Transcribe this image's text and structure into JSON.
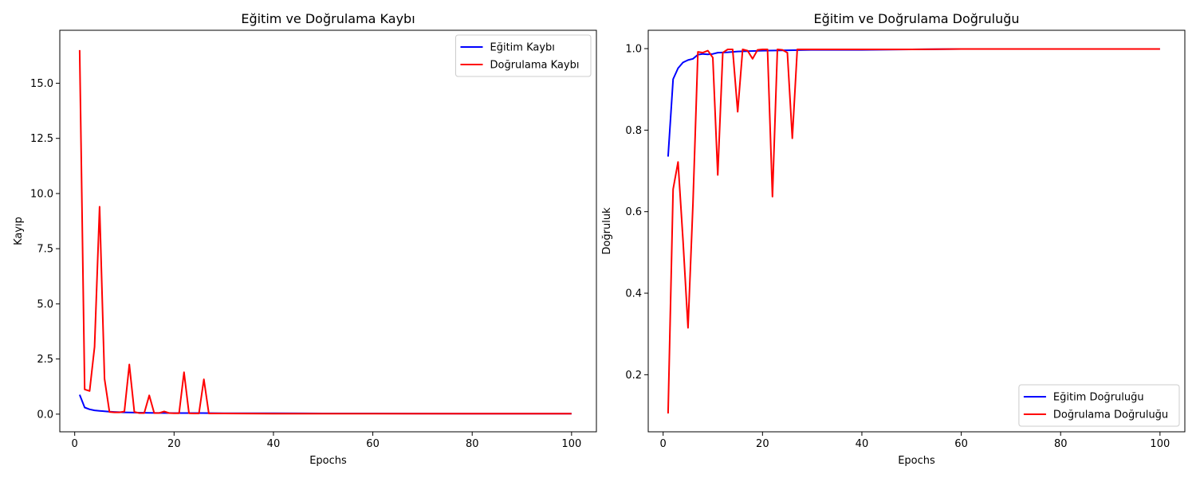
{
  "chart_data": [
    {
      "type": "line",
      "title": "Eğitim ve Doğrulama Kaybı",
      "xlabel": "Epochs",
      "ylabel": "Kayıp",
      "xlim": [
        -3,
        105
      ],
      "ylim": [
        -0.8,
        17.4
      ],
      "xticks": [
        0,
        20,
        40,
        60,
        80,
        100
      ],
      "yticks": [
        0.0,
        2.5,
        5.0,
        7.5,
        10.0,
        12.5,
        15.0
      ],
      "ytick_labels": [
        "0.0",
        "2.5",
        "5.0",
        "7.5",
        "10.0",
        "12.5",
        "15.0"
      ],
      "legend_position": "top-right",
      "grid": false,
      "series": [
        {
          "name": "Eğitim Kaybı",
          "color": "#0000ff",
          "x": [
            1,
            2,
            3,
            4,
            5,
            6,
            7,
            8,
            9,
            10,
            12,
            15,
            20,
            25,
            30,
            40,
            50,
            60,
            80,
            100
          ],
          "y": [
            0.88,
            0.3,
            0.22,
            0.17,
            0.15,
            0.13,
            0.11,
            0.1,
            0.09,
            0.08,
            0.07,
            0.06,
            0.05,
            0.05,
            0.04,
            0.04,
            0.03,
            0.03,
            0.02,
            0.02
          ]
        },
        {
          "name": "Doğrulama Kaybı",
          "color": "#ff0000",
          "x": [
            1,
            2,
            3,
            4,
            5,
            6,
            7,
            8,
            9,
            10,
            11,
            12,
            13,
            14,
            15,
            16,
            17,
            18,
            19,
            20,
            21,
            22,
            23,
            24,
            25,
            26,
            27,
            28,
            30,
            40,
            50,
            60,
            80,
            100
          ],
          "y": [
            16.5,
            1.12,
            1.05,
            3.05,
            9.4,
            1.6,
            0.1,
            0.08,
            0.08,
            0.12,
            2.25,
            0.1,
            0.05,
            0.05,
            0.85,
            0.05,
            0.05,
            0.12,
            0.05,
            0.04,
            0.04,
            1.9,
            0.04,
            0.03,
            0.03,
            1.58,
            0.03,
            0.03,
            0.03,
            0.02,
            0.02,
            0.02,
            0.02,
            0.02
          ]
        }
      ]
    },
    {
      "type": "line",
      "title": "Eğitim ve Doğrulama Doğruluğu",
      "xlabel": "Epochs",
      "ylabel": "Doğruluk",
      "xlim": [
        -3,
        105
      ],
      "ylim": [
        0.06,
        1.045
      ],
      "xticks": [
        0,
        20,
        40,
        60,
        80,
        100
      ],
      "yticks": [
        0.2,
        0.4,
        0.6,
        0.8,
        1.0
      ],
      "ytick_labels": [
        "0.2",
        "0.4",
        "0.6",
        "0.8",
        "1.0"
      ],
      "legend_position": "bottom-right",
      "grid": false,
      "series": [
        {
          "name": "Eğitim Doğruluğu",
          "color": "#0000ff",
          "x": [
            1,
            2,
            3,
            4,
            5,
            6,
            7,
            8,
            9,
            10,
            11,
            13,
            15,
            20,
            25,
            30,
            40,
            50,
            60,
            80,
            100
          ],
          "y": [
            0.735,
            0.925,
            0.952,
            0.966,
            0.972,
            0.975,
            0.985,
            0.987,
            0.986,
            0.987,
            0.99,
            0.991,
            0.993,
            0.995,
            0.996,
            0.997,
            0.997,
            0.998,
            0.999,
            0.999,
            0.999
          ]
        },
        {
          "name": "Doğrulama Doğruluğu",
          "color": "#ff0000",
          "x": [
            1,
            2,
            3,
            4,
            5,
            6,
            7,
            8,
            9,
            10,
            11,
            12,
            13,
            14,
            15,
            16,
            17,
            18,
            19,
            20,
            21,
            22,
            23,
            24,
            25,
            26,
            27,
            28,
            30,
            40,
            50,
            60,
            80,
            100
          ],
          "y": [
            0.105,
            0.655,
            0.722,
            0.53,
            0.315,
            0.62,
            0.992,
            0.99,
            0.995,
            0.978,
            0.69,
            0.99,
            0.998,
            0.998,
            0.845,
            0.998,
            0.995,
            0.975,
            0.997,
            0.998,
            0.998,
            0.637,
            0.998,
            0.997,
            0.99,
            0.78,
            0.998,
            0.998,
            0.998,
            0.998,
            0.998,
            0.999,
            0.999,
            0.999
          ]
        }
      ]
    }
  ]
}
